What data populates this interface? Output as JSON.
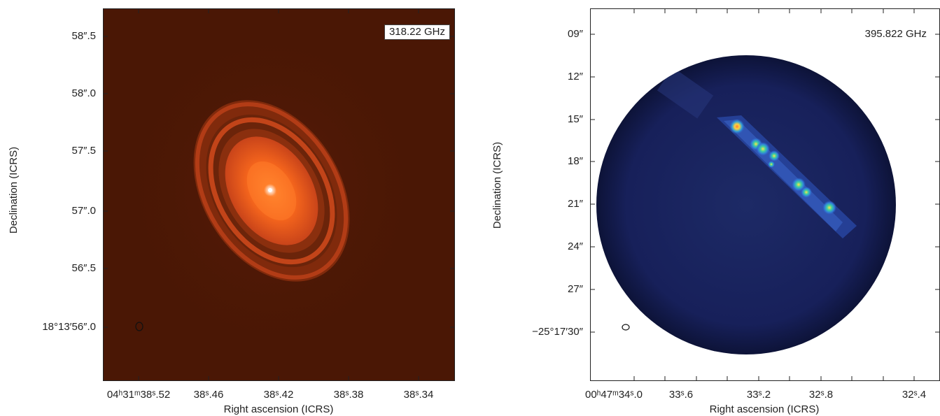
{
  "figure": {
    "panel_a": {
      "frequency_label": "318.22 GHz",
      "y_axis_title": "Declination (ICRS)",
      "x_axis_title": "Right ascension (ICRS)",
      "y_ticks": [
        "58″.5",
        "58″.0",
        "57″.5",
        "57″.0",
        "56″.5",
        "18°13′56″.0"
      ],
      "x_ticks": [
        "04ʰ31ᵐ38ˢ.52",
        "38ˢ.46",
        "38ˢ.42",
        "38ˢ.38",
        "38ˢ.34"
      ],
      "colors": {
        "background": "#4a1705",
        "ring": "#c8461a",
        "core": "#ff6a1c",
        "peak": "#ffffff"
      }
    },
    "panel_b": {
      "frequency_label": "395.822 GHz",
      "y_axis_title": "Declination (ICRS)",
      "x_axis_title": "Right ascension (ICRS)",
      "y_ticks": [
        "09″",
        "12″",
        "15″",
        "18″",
        "21″",
        "24″",
        "27″",
        "−25°17′30″"
      ],
      "x_ticks": [
        "00ʰ47ᵐ34ˢ.0",
        "33ˢ.6",
        "33ˢ.2",
        "32ˢ.8",
        "32ˢ.4"
      ],
      "colors": {
        "background": "#1a2357",
        "field": "#141b4a",
        "emission": "#3a64c8",
        "peak": "#ffd23a"
      }
    }
  }
}
